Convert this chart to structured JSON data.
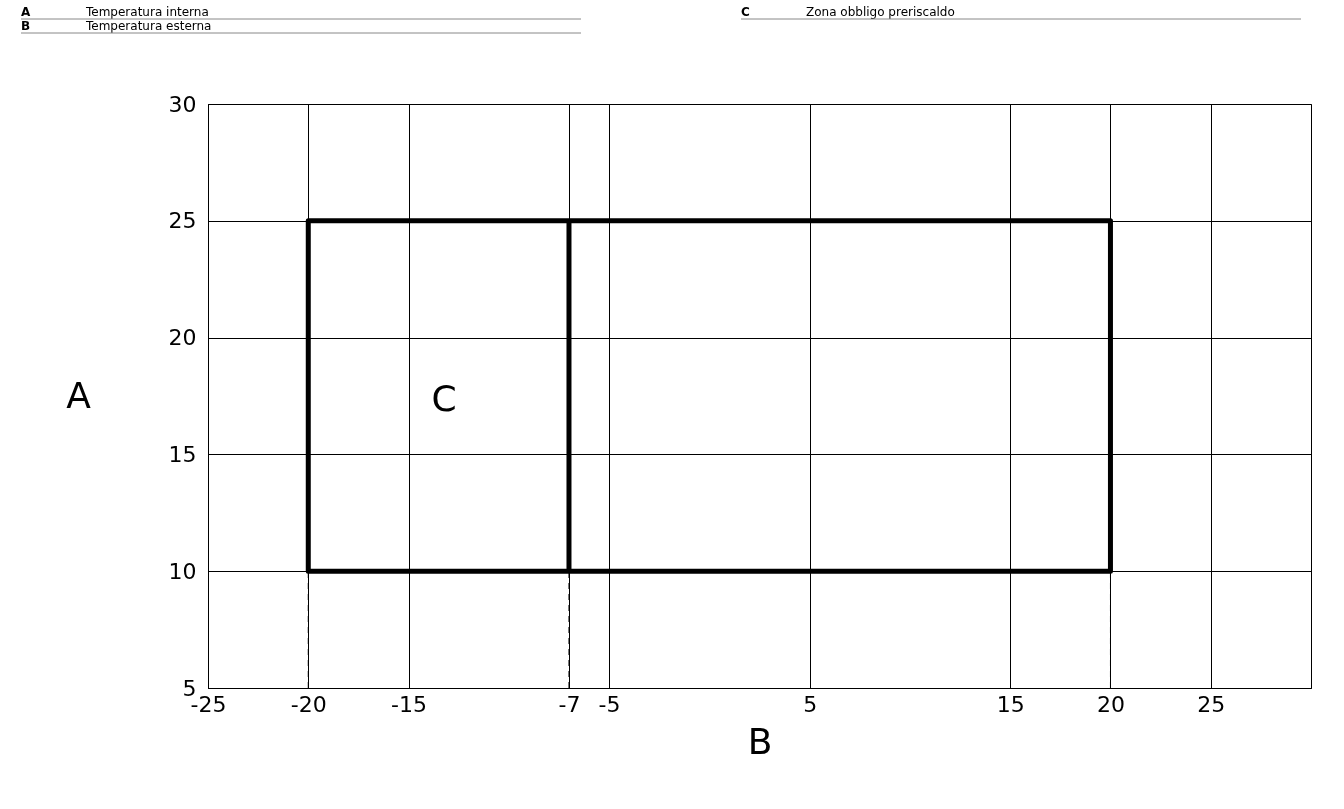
{
  "chart_data": {
    "type": "line",
    "annotations": [
      "A",
      "Temperatura interna",
      "B",
      "Temperatura esterna",
      "C",
      "Zona obbligo preriscaldo",
      "C"
    ],
    "xlabel": "B",
    "ylabel": "A",
    "xlim": [
      -25,
      30
    ],
    "ylim": [
      5,
      30
    ],
    "xticks": [
      -25,
      -20,
      -15,
      -7,
      -5,
      5,
      15,
      20,
      25
    ],
    "yticks": [
      5,
      10,
      15,
      20,
      25,
      30
    ],
    "grid": true,
    "marker": "none",
    "series": [
      {
        "color": "#000000",
        "line_style": "solid",
        "x": [
          -7,
          -7,
          -20,
          -20,
          20,
          20,
          -7
        ],
        "values": [
          10,
          25,
          25,
          10,
          10,
          25,
          25
        ]
      },
      {
        "color": "#000000",
        "line_style": "dashed",
        "x": [
          -20,
          -20
        ],
        "values": [
          5,
          10
        ]
      },
      {
        "color": "#000000",
        "line_style": "dashed",
        "x": [
          -7,
          -7
        ],
        "values": [
          5,
          10
        ]
      },
      {
        "color": "#000000",
        "line_style": "dashed",
        "x": [
          20,
          20
        ],
        "values": [
          5,
          10
        ]
      }
    ]
  }
}
